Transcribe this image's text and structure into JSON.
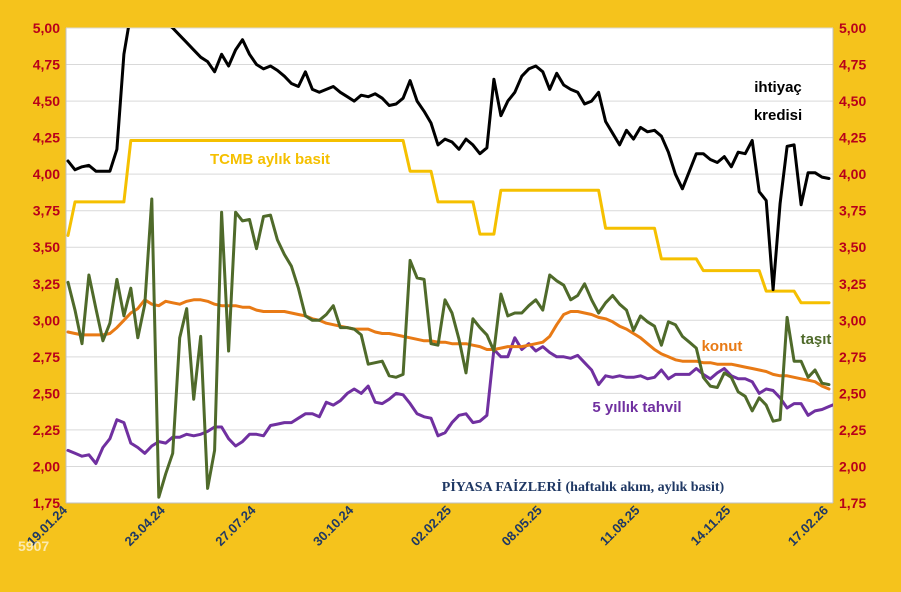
{
  "chart_data": {
    "type": "line",
    "title": "PİYASA FAİZLERİ (haftalık akım, aylık basit)",
    "watermark": "5907",
    "ylim": [
      1.75,
      5.0
    ],
    "y_ticks": [
      "1,75",
      "2,00",
      "2,25",
      "2,50",
      "2,75",
      "3,00",
      "3,25",
      "3,50",
      "3,75",
      "4,00",
      "4,25",
      "4,50",
      "4,75",
      "5,00"
    ],
    "x_tick_labels": [
      "19.01.24",
      "23.04.24",
      "27.07.24",
      "30.10.24",
      "02.02.25",
      "08.05.25",
      "11.08.25",
      "14.11.25",
      "17.02.26"
    ],
    "grid": true,
    "colors": {
      "background": "#f5c31c",
      "plot": "#ffffff",
      "ihtiyac": "#000000",
      "tcmb": "#f5c000",
      "konut": "#e87a15",
      "tasit": "#4f6a2a",
      "tahvil": "#7030a0"
    },
    "series": [
      {
        "id": "ihtiyac",
        "name": "ihtiyaç kredisi",
        "values": [
          4.09,
          4.03,
          4.05,
          4.06,
          4.02,
          4.02,
          4.02,
          4.17,
          4.82,
          5.1,
          5.2,
          5.15,
          5.12,
          5.08,
          5.04,
          5.0,
          4.95,
          4.9,
          4.85,
          4.8,
          4.77,
          4.7,
          4.82,
          4.74,
          4.85,
          4.92,
          4.82,
          4.75,
          4.72,
          4.74,
          4.71,
          4.67,
          4.62,
          4.6,
          4.7,
          4.58,
          4.56,
          4.58,
          4.6,
          4.56,
          4.53,
          4.5,
          4.54,
          4.53,
          4.55,
          4.52,
          4.47,
          4.48,
          4.52,
          4.64,
          4.5,
          4.43,
          4.35,
          4.2,
          4.24,
          4.22,
          4.17,
          4.24,
          4.2,
          4.14,
          4.18,
          4.65,
          4.4,
          4.5,
          4.56,
          4.67,
          4.72,
          4.74,
          4.7,
          4.58,
          4.69,
          4.61,
          4.58,
          4.56,
          4.48,
          4.5,
          4.56,
          4.36,
          4.28,
          4.2,
          4.3,
          4.24,
          4.32,
          4.29,
          4.3,
          4.26,
          4.15,
          4.0,
          3.9,
          4.02,
          4.14,
          4.14,
          4.1,
          4.08,
          4.12,
          4.05,
          4.15,
          4.14,
          4.23,
          3.88,
          3.82,
          3.21,
          3.8,
          4.19,
          4.2,
          3.79,
          4.01,
          4.01,
          3.98,
          3.97
        ]
      },
      {
        "id": "tcmb",
        "name": "TCMB aylık basit",
        "values": [
          3.58,
          3.81,
          3.81,
          3.81,
          3.81,
          3.81,
          3.81,
          3.81,
          3.81,
          4.23,
          4.23,
          4.23,
          4.23,
          4.23,
          4.23,
          4.23,
          4.23,
          4.23,
          4.23,
          4.23,
          4.23,
          4.23,
          4.23,
          4.23,
          4.23,
          4.23,
          4.23,
          4.23,
          4.23,
          4.23,
          4.23,
          4.23,
          4.23,
          4.23,
          4.23,
          4.23,
          4.23,
          4.23,
          4.23,
          4.23,
          4.23,
          4.23,
          4.23,
          4.23,
          4.23,
          4.23,
          4.23,
          4.23,
          4.23,
          4.02,
          4.02,
          4.02,
          4.02,
          3.81,
          3.81,
          3.81,
          3.81,
          3.81,
          3.81,
          3.59,
          3.59,
          3.59,
          3.89,
          3.89,
          3.89,
          3.89,
          3.89,
          3.89,
          3.89,
          3.89,
          3.89,
          3.89,
          3.89,
          3.89,
          3.89,
          3.89,
          3.89,
          3.63,
          3.63,
          3.63,
          3.63,
          3.63,
          3.63,
          3.63,
          3.63,
          3.42,
          3.42,
          3.42,
          3.42,
          3.42,
          3.42,
          3.34,
          3.34,
          3.34,
          3.34,
          3.34,
          3.34,
          3.34,
          3.34,
          3.34,
          3.2,
          3.2,
          3.2,
          3.2,
          3.2,
          3.12,
          3.12,
          3.12,
          3.12,
          3.12
        ]
      },
      {
        "id": "konut",
        "name": "konut",
        "values": [
          2.92,
          2.91,
          2.9,
          2.9,
          2.9,
          2.9,
          2.91,
          2.95,
          3.0,
          3.05,
          3.08,
          3.14,
          3.11,
          3.1,
          3.13,
          3.12,
          3.11,
          3.13,
          3.14,
          3.14,
          3.13,
          3.11,
          3.1,
          3.1,
          3.1,
          3.09,
          3.09,
          3.07,
          3.06,
          3.06,
          3.06,
          3.06,
          3.05,
          3.04,
          3.03,
          3.01,
          3.0,
          2.98,
          2.97,
          2.96,
          2.95,
          2.94,
          2.94,
          2.94,
          2.92,
          2.91,
          2.91,
          2.9,
          2.89,
          2.88,
          2.87,
          2.86,
          2.86,
          2.85,
          2.85,
          2.84,
          2.84,
          2.84,
          2.83,
          2.82,
          2.8,
          2.8,
          2.81,
          2.82,
          2.82,
          2.82,
          2.83,
          2.84,
          2.85,
          2.89,
          2.97,
          3.04,
          3.06,
          3.06,
          3.05,
          3.04,
          3.02,
          3.01,
          2.99,
          2.96,
          2.94,
          2.91,
          2.88,
          2.84,
          2.8,
          2.77,
          2.75,
          2.73,
          2.72,
          2.72,
          2.72,
          2.71,
          2.71,
          2.7,
          2.7,
          2.7,
          2.69,
          2.68,
          2.67,
          2.66,
          2.65,
          2.63,
          2.62,
          2.62,
          2.61,
          2.6,
          2.59,
          2.58,
          2.55,
          2.53
        ]
      },
      {
        "id": "tasit",
        "name": "taşıt",
        "values": [
          3.26,
          3.07,
          2.84,
          3.31,
          3.08,
          2.86,
          2.98,
          3.28,
          3.03,
          3.22,
          2.88,
          3.11,
          3.83,
          1.79,
          1.95,
          2.09,
          2.88,
          3.08,
          2.46,
          2.89,
          1.85,
          2.11,
          3.74,
          2.79,
          3.74,
          3.68,
          3.69,
          3.49,
          3.71,
          3.72,
          3.55,
          3.45,
          3.37,
          3.22,
          3.03,
          3.0,
          3.0,
          3.04,
          3.1,
          2.95,
          2.95,
          2.94,
          2.9,
          2.7,
          2.71,
          2.72,
          2.62,
          2.61,
          2.63,
          3.41,
          3.29,
          3.28,
          2.84,
          2.83,
          3.14,
          3.05,
          2.87,
          2.64,
          3.01,
          2.95,
          2.9,
          2.79,
          3.18,
          3.03,
          3.05,
          3.05,
          3.1,
          3.14,
          3.07,
          3.31,
          3.27,
          3.24,
          3.14,
          3.17,
          3.25,
          3.14,
          3.05,
          3.12,
          3.17,
          3.11,
          3.07,
          2.93,
          3.03,
          2.99,
          2.96,
          2.83,
          2.99,
          2.97,
          2.89,
          2.85,
          2.81,
          2.61,
          2.55,
          2.54,
          2.64,
          2.61,
          2.51,
          2.48,
          2.38,
          2.47,
          2.42,
          2.31,
          2.32,
          3.02,
          2.72,
          2.72,
          2.61,
          2.66,
          2.57,
          2.56
        ]
      },
      {
        "id": "tahvil",
        "name": "5 yıllık tahvil",
        "values": [
          2.11,
          2.09,
          2.07,
          2.08,
          2.02,
          2.13,
          2.19,
          2.32,
          2.3,
          2.16,
          2.13,
          2.09,
          2.14,
          2.17,
          2.16,
          2.2,
          2.2,
          2.22,
          2.21,
          2.22,
          2.24,
          2.27,
          2.27,
          2.19,
          2.14,
          2.17,
          2.22,
          2.22,
          2.21,
          2.28,
          2.29,
          2.3,
          2.3,
          2.33,
          2.36,
          2.36,
          2.34,
          2.44,
          2.42,
          2.45,
          2.5,
          2.53,
          2.5,
          2.55,
          2.44,
          2.43,
          2.46,
          2.5,
          2.49,
          2.43,
          2.36,
          2.34,
          2.33,
          2.21,
          2.23,
          2.3,
          2.35,
          2.36,
          2.3,
          2.31,
          2.35,
          2.8,
          2.75,
          2.75,
          2.88,
          2.8,
          2.84,
          2.79,
          2.82,
          2.78,
          2.75,
          2.75,
          2.74,
          2.76,
          2.71,
          2.66,
          2.56,
          2.62,
          2.61,
          2.62,
          2.61,
          2.61,
          2.62,
          2.6,
          2.61,
          2.66,
          2.6,
          2.63,
          2.63,
          2.63,
          2.67,
          2.63,
          2.6,
          2.64,
          2.67,
          2.62,
          2.6,
          2.6,
          2.58,
          2.5,
          2.53,
          2.52,
          2.47,
          2.4,
          2.43,
          2.43,
          2.35,
          2.38,
          2.39,
          2.41,
          2.43
        ]
      }
    ],
    "annotations": {
      "ihtiyac_line1": "ihtiyaç",
      "ihtiyac_line2": "kredisi",
      "tcmb": "TCMB aylık basit",
      "konut": "konut",
      "tasit": "taşıt",
      "tahvil": "5 yıllık tahvil"
    }
  }
}
